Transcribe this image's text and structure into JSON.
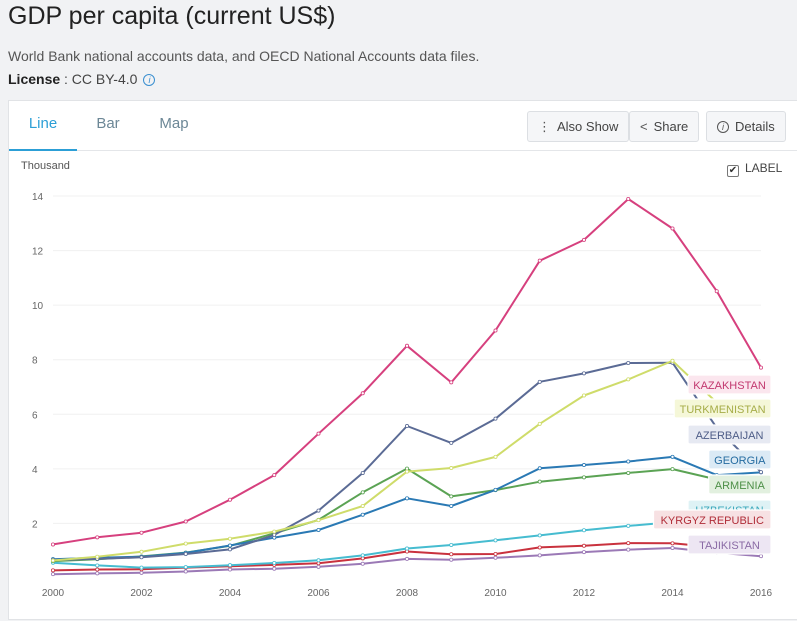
{
  "header": {
    "title": "GDP per capita (current US$)",
    "source": "World Bank national accounts data, and OECD National Accounts data files.",
    "license_label": "License",
    "license_value": " : CC BY-4.0",
    "info_icon": "i"
  },
  "tabs": [
    {
      "label": "Line",
      "active": true
    },
    {
      "label": "Bar",
      "active": false
    },
    {
      "label": "Map",
      "active": false
    }
  ],
  "toolbar": {
    "also_show": {
      "label": "Also Show",
      "icon": "⋮"
    },
    "share": {
      "label": "Share",
      "icon": "<"
    },
    "details": {
      "label": "Details",
      "icon": "i"
    }
  },
  "label_toggle": {
    "label": "LABEL",
    "checked": true,
    "mark": "✔"
  },
  "chart_data": {
    "type": "line",
    "unit_label": "Thousand",
    "ylim": [
      0,
      14
    ],
    "yticks": [
      2,
      4,
      6,
      8,
      10,
      12,
      14
    ],
    "xticks": [
      2000,
      2002,
      2004,
      2006,
      2008,
      2010,
      2012,
      2014,
      2016
    ],
    "x": [
      2000,
      2001,
      2002,
      2003,
      2004,
      2005,
      2006,
      2007,
      2008,
      2009,
      2010,
      2011,
      2012,
      2013,
      2014,
      2015,
      2016
    ],
    "series": [
      {
        "name": "KAZAKHSTAN",
        "color": "#d6407e",
        "label_bg": "#fbe6ee",
        "label_color": "#c2386f",
        "values": [
          1.23,
          1.49,
          1.66,
          2.07,
          2.87,
          3.77,
          5.29,
          6.77,
          8.51,
          7.17,
          9.07,
          11.63,
          12.39,
          13.89,
          12.81,
          10.51,
          7.71
        ]
      },
      {
        "name": "TURKMENISTAN",
        "color": "#cfdc6a",
        "label_bg": "#f5f7d8",
        "label_color": "#a6ad48",
        "values": [
          0.64,
          0.78,
          0.96,
          1.26,
          1.44,
          1.7,
          2.12,
          2.64,
          3.9,
          4.03,
          4.44,
          5.65,
          6.69,
          7.28,
          7.96,
          6.43,
          6.39
        ]
      },
      {
        "name": "AZERBAIJAN",
        "color": "#5b6b95",
        "label_bg": "#e6e9f2",
        "label_color": "#4d5c87",
        "values": [
          0.66,
          0.7,
          0.76,
          0.88,
          1.05,
          1.58,
          2.47,
          3.85,
          5.57,
          4.95,
          5.84,
          7.19,
          7.5,
          7.88,
          7.89,
          5.5,
          3.88
        ]
      },
      {
        "name": "GEORGIA",
        "color": "#2a79b4",
        "label_bg": "#dbeaf5",
        "label_color": "#256ca1",
        "values": [
          0.69,
          0.74,
          0.78,
          0.92,
          1.19,
          1.48,
          1.76,
          2.32,
          2.92,
          2.64,
          3.23,
          4.02,
          4.14,
          4.27,
          4.44,
          3.77,
          3.87
        ]
      },
      {
        "name": "ARMENIA",
        "color": "#5ba354",
        "label_bg": "#e2f0df",
        "label_color": "#4d8f47",
        "values": [
          0.62,
          0.69,
          0.79,
          0.93,
          1.18,
          1.64,
          2.13,
          3.14,
          4.01,
          2.99,
          3.22,
          3.53,
          3.69,
          3.85,
          3.99,
          3.61,
          3.61
        ]
      },
      {
        "name": "UZBEKISTAN",
        "color": "#46bcd0",
        "label_bg": "#def2f5",
        "label_color": "#3ba8bb",
        "values": [
          0.56,
          0.46,
          0.38,
          0.4,
          0.47,
          0.55,
          0.65,
          0.83,
          1.08,
          1.21,
          1.38,
          1.56,
          1.75,
          1.91,
          2.05,
          2.14,
          2.12
        ]
      },
      {
        "name": "KYRGYZ REPUBLIC",
        "color": "#c9323e",
        "label_bg": "#f7e1e3",
        "label_color": "#b02d38",
        "values": [
          0.28,
          0.31,
          0.32,
          0.38,
          0.43,
          0.48,
          0.54,
          0.72,
          0.97,
          0.87,
          0.88,
          1.12,
          1.18,
          1.28,
          1.27,
          1.12,
          1.08
        ]
      },
      {
        "name": "TAJIKISTAN",
        "color": "#9b79b6",
        "label_bg": "#ede6f3",
        "label_color": "#8a6aa5",
        "values": [
          0.14,
          0.17,
          0.19,
          0.24,
          0.31,
          0.34,
          0.41,
          0.52,
          0.7,
          0.67,
          0.74,
          0.83,
          0.95,
          1.04,
          1.1,
          0.93,
          0.8
        ]
      }
    ]
  }
}
